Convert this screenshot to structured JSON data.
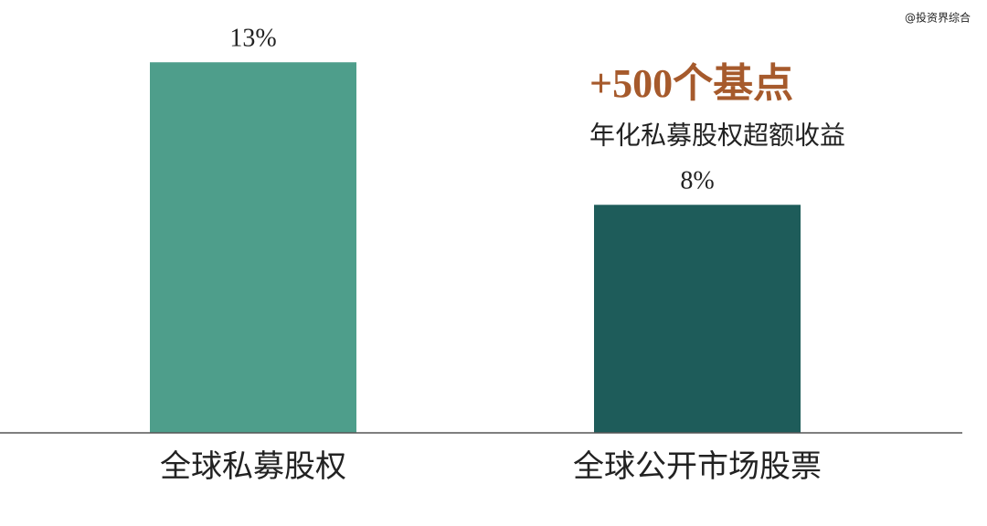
{
  "chart_data": {
    "type": "bar",
    "categories": [
      "全球私募股权",
      "全球公开市场股票"
    ],
    "values": [
      13,
      8
    ],
    "value_labels": [
      "13%",
      "8%"
    ],
    "colors": [
      "#4e9e8b",
      "#1e5c5a"
    ],
    "ylim": [
      0,
      14
    ],
    "annotations": [
      "+500个基点",
      "年化私募股权超额收益"
    ],
    "watermark": "@投资界综合"
  }
}
